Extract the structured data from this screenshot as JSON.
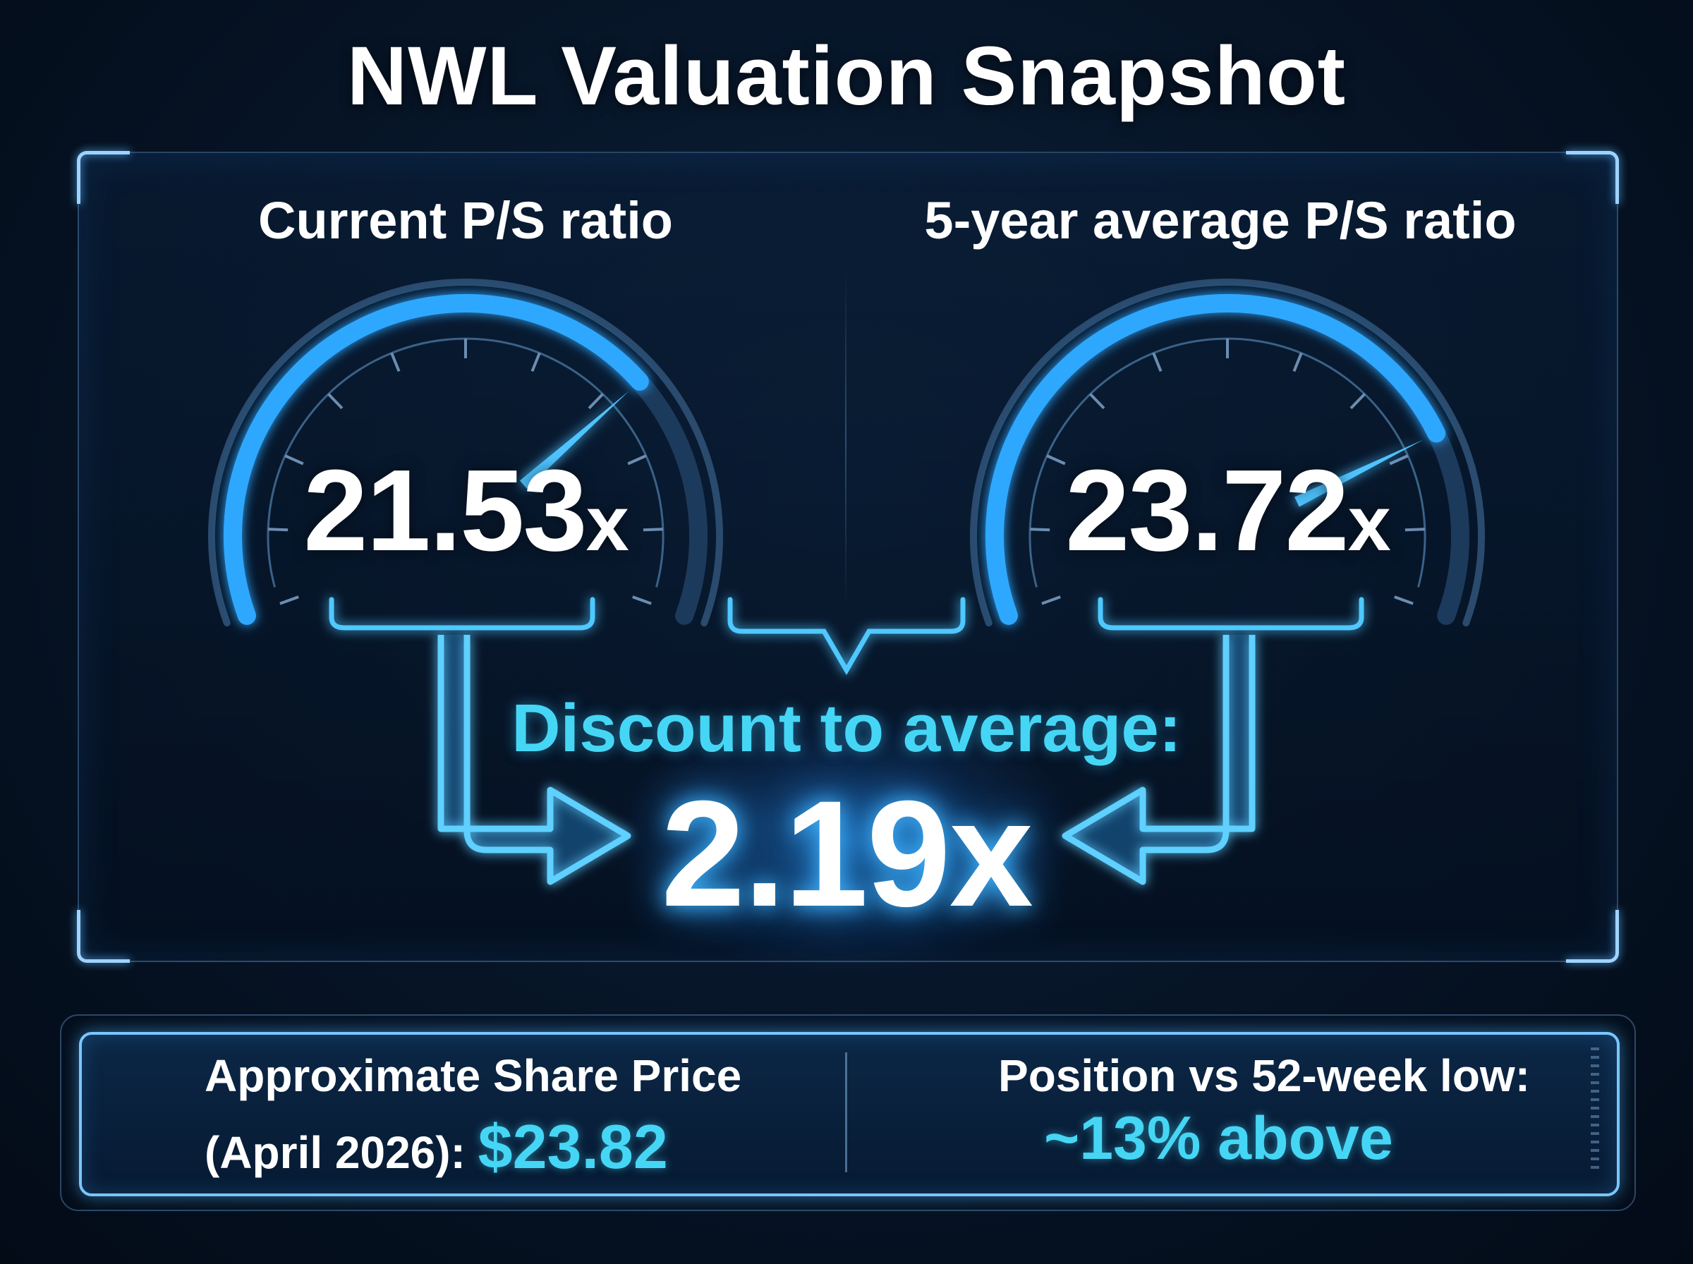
{
  "title": "NWL Valuation Snapshot",
  "gauges": [
    {
      "label": "Current P/S ratio",
      "value": "21.53",
      "unit": "x",
      "level": 0.72
    },
    {
      "label": "5-year average P/S ratio",
      "value": "23.72",
      "unit": "x",
      "level": 0.79
    }
  ],
  "discount": {
    "label": "Discount to average:",
    "value": "2.19x"
  },
  "share_price": {
    "label_line1": "Approximate Share Price",
    "label_line2": "(April 2026):",
    "value": "$23.82",
    "icon": "chart-up-arrow-icon"
  },
  "position": {
    "label": "Position vs 52-week low:",
    "value": "~13% above",
    "icon": "percent-up-arrow-icon",
    "icon_glyph": "%"
  },
  "colors": {
    "accent": "#46d6f5",
    "glow": "#2f9bff",
    "background": "#071629"
  }
}
